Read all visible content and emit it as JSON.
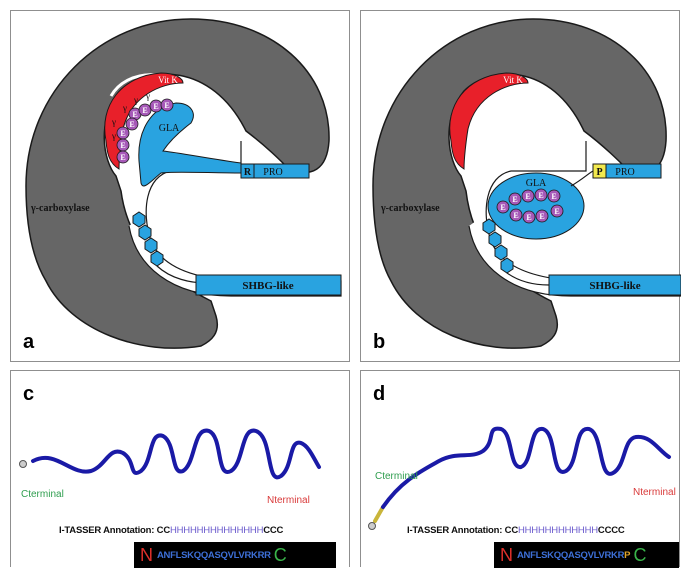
{
  "panel_a": {
    "label": "a",
    "enzyme_label": "γ-carboxylase",
    "vitk_label": "Vit K",
    "gla_label": "GLA",
    "gamma": "γ",
    "e_residue": "E",
    "propeptide_box": "R",
    "propeptide_label": "PRO",
    "shbg_label": "SHBG-like"
  },
  "panel_b": {
    "label": "b",
    "enzyme_label": "γ-carboxylase",
    "vitk_label": "Vit K",
    "gla_label": "GLA",
    "e_residue": "E",
    "propeptide_box": "P",
    "propeptide_label": "PRO",
    "shbg_label": "SHBG-like"
  },
  "panel_c": {
    "label": "c",
    "c_terminal": "Cterminal",
    "n_terminal": "Nterminal",
    "annotation_prefix": "I-TASSER Annotation: ",
    "annotation_start": "CC",
    "annotation_helix": "HHHHHHHHHHHHHH",
    "annotation_end": "CCC",
    "seq_n": "N",
    "sequence": "ANFLSKQQASQVLVRKRR",
    "seq_c": "C"
  },
  "panel_d": {
    "label": "d",
    "c_terminal": "Cterminal",
    "n_terminal": "Nterminal",
    "annotation_prefix": "I-TASSER Annotation: ",
    "annotation_start": "CC",
    "annotation_helix": "HHHHHHHHHHHH",
    "annotation_end": "CCCC",
    "seq_n": "N",
    "sequence": "ANFLSKQQASQVLVRKR",
    "seq_p": "P",
    "seq_c": "C"
  },
  "colors": {
    "enzyme": "#666666",
    "vitk": "#e8202a",
    "gla": "#29a3e0",
    "e_residue": "#a659b8",
    "shbg": "#29a3e0",
    "propeptide_p": "#f2e94e",
    "helix": "#1a1aa6"
  }
}
